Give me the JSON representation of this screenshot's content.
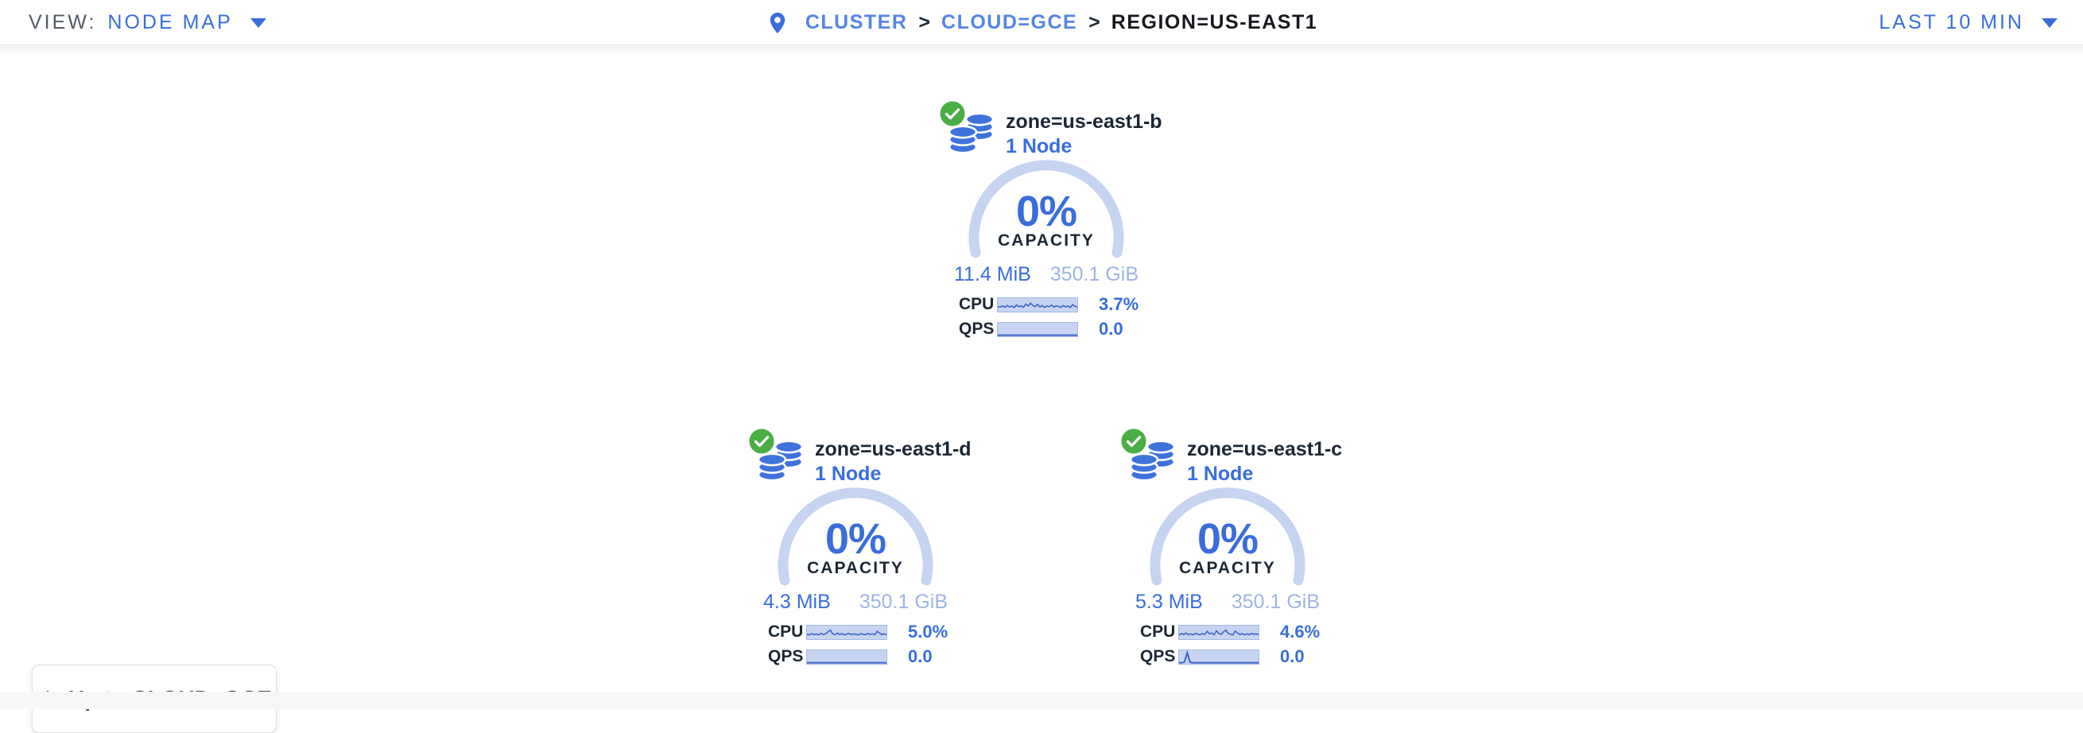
{
  "header": {
    "view_label": "VIEW:",
    "view_value": "NODE MAP",
    "breadcrumb": {
      "separator": ">",
      "items": [
        {
          "label": "CLUSTER"
        },
        {
          "label": "CLOUD=GCE"
        },
        {
          "label": "REGION=US-EAST1"
        }
      ]
    },
    "time_range": "LAST 10 MIN"
  },
  "zones": [
    {
      "name": "zone=us-east1-b",
      "nodes": "1 Node",
      "capacity_pct": "0%",
      "capacity_label": "CAPACITY",
      "capacity_used": "11.4 MiB",
      "capacity_total": "350.1 GiB",
      "cpu_label": "CPU",
      "cpu_value": "3.7%",
      "qps_label": "QPS",
      "qps_value": "0.0",
      "cpu_spark": [
        0.62,
        0.7,
        0.58,
        0.72,
        0.55,
        0.68,
        0.6,
        0.74,
        0.5,
        0.66,
        0.58,
        0.72,
        0.42,
        0.6,
        0.35,
        0.55,
        0.65,
        0.45,
        0.68,
        0.55,
        0.72,
        0.6,
        0.66,
        0.52,
        0.7,
        0.58,
        0.64,
        0.72,
        0.55,
        0.68,
        0.6,
        0.73,
        0.48,
        0.62,
        0.7
      ],
      "qps_spark": [
        1,
        1,
        1,
        1,
        1,
        1,
        1,
        1,
        1,
        1,
        1,
        1,
        1,
        1,
        1,
        1,
        1,
        1,
        1,
        1,
        1,
        1,
        1,
        1,
        1,
        1,
        1,
        1,
        1,
        1
      ]
    },
    {
      "name": "zone=us-east1-d",
      "nodes": "1 Node",
      "capacity_pct": "0%",
      "capacity_label": "CAPACITY",
      "capacity_used": "4.3 MiB",
      "capacity_total": "350.1 GiB",
      "cpu_label": "CPU",
      "cpu_value": "5.0%",
      "qps_label": "QPS",
      "qps_value": "0.0",
      "cpu_spark": [
        0.65,
        0.72,
        0.6,
        0.7,
        0.63,
        0.72,
        0.58,
        0.68,
        0.62,
        0.45,
        0.3,
        0.62,
        0.7,
        0.55,
        0.68,
        0.6,
        0.72,
        0.65,
        0.58,
        0.7,
        0.62,
        0.68,
        0.72,
        0.6,
        0.66,
        0.7,
        0.58,
        0.68,
        0.62,
        0.72,
        0.4,
        0.55,
        0.68,
        0.62,
        0.7
      ],
      "qps_spark": [
        1,
        1,
        1,
        1,
        1,
        1,
        1,
        1,
        1,
        1,
        1,
        1,
        1,
        1,
        1,
        1,
        1,
        1,
        1,
        1,
        1,
        1,
        1,
        1,
        1,
        1,
        1,
        1,
        1,
        1
      ]
    },
    {
      "name": "zone=us-east1-c",
      "nodes": "1 Node",
      "capacity_pct": "0%",
      "capacity_label": "CAPACITY",
      "capacity_used": "5.3 MiB",
      "capacity_total": "350.1 GiB",
      "cpu_label": "CPU",
      "cpu_value": "4.6%",
      "qps_label": "QPS",
      "qps_value": "0.0",
      "cpu_spark": [
        0.72,
        0.6,
        0.68,
        0.55,
        0.7,
        0.62,
        0.72,
        0.58,
        0.66,
        0.7,
        0.6,
        0.68,
        0.4,
        0.62,
        0.55,
        0.7,
        0.35,
        0.6,
        0.68,
        0.45,
        0.3,
        0.58,
        0.66,
        0.72,
        0.38,
        0.55,
        0.68,
        0.6,
        0.72,
        0.62,
        0.7,
        0.58,
        0.66,
        0.62,
        0.7
      ],
      "qps_spark": [
        1,
        1,
        0.92,
        0.12,
        0.95,
        1,
        1,
        1,
        1,
        1,
        1,
        1,
        1,
        1,
        1,
        1,
        1,
        1,
        1,
        1,
        1,
        1,
        1,
        1,
        1,
        1,
        1,
        1,
        1,
        1
      ]
    }
  ],
  "up_button": {
    "label": "Up to CLOUD=GCE"
  },
  "icons": {
    "breadcrumb_pin": "location-pin",
    "view_caret": "caret-down",
    "time_caret": "caret-down",
    "zone_icon": "database-stack",
    "zone_status": "check-circle",
    "up_arrow": "arrow-up"
  },
  "colors": {
    "primary_blue": "#3a6ddb",
    "link_blue": "#5585e2",
    "pale_blue": "#c6d4f1",
    "spark_line": "#3f63cb",
    "total_text": "#9fb4e5",
    "dark_text": "#1c2734",
    "status_green": "#49ae43"
  }
}
